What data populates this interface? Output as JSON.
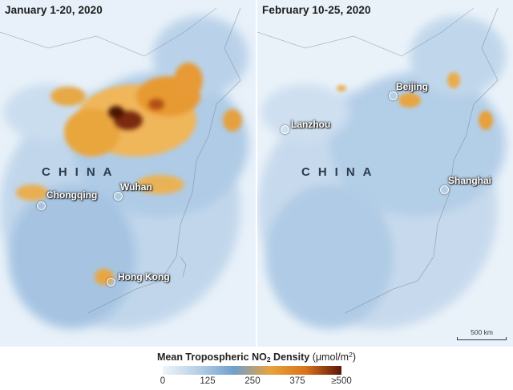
{
  "panels": [
    {
      "title": "January 1-20, 2020",
      "country_label": "CHINA",
      "cities": [
        "Chongqing",
        "Wuhan",
        "Hong Kong"
      ]
    },
    {
      "title": "February 10-25, 2020",
      "country_label": "CHINA",
      "cities": [
        "Lanzhou",
        "Beijing",
        "Shanghai"
      ],
      "scale_label": "500 km"
    }
  ],
  "legend": {
    "title_main": "Mean Tropospheric NO",
    "title_subscript": "2",
    "title_suffix": " Density ",
    "unit_main": "(μmol/m",
    "unit_sup": "2",
    "unit_close": ")",
    "ticks": [
      "0",
      "125",
      "250",
      "375",
      "≥500"
    ],
    "colors": [
      "#eef4fb",
      "#b6cfe6",
      "#6f9fcd",
      "#e8a43a",
      "#d9731c",
      "#5a1708"
    ]
  }
}
